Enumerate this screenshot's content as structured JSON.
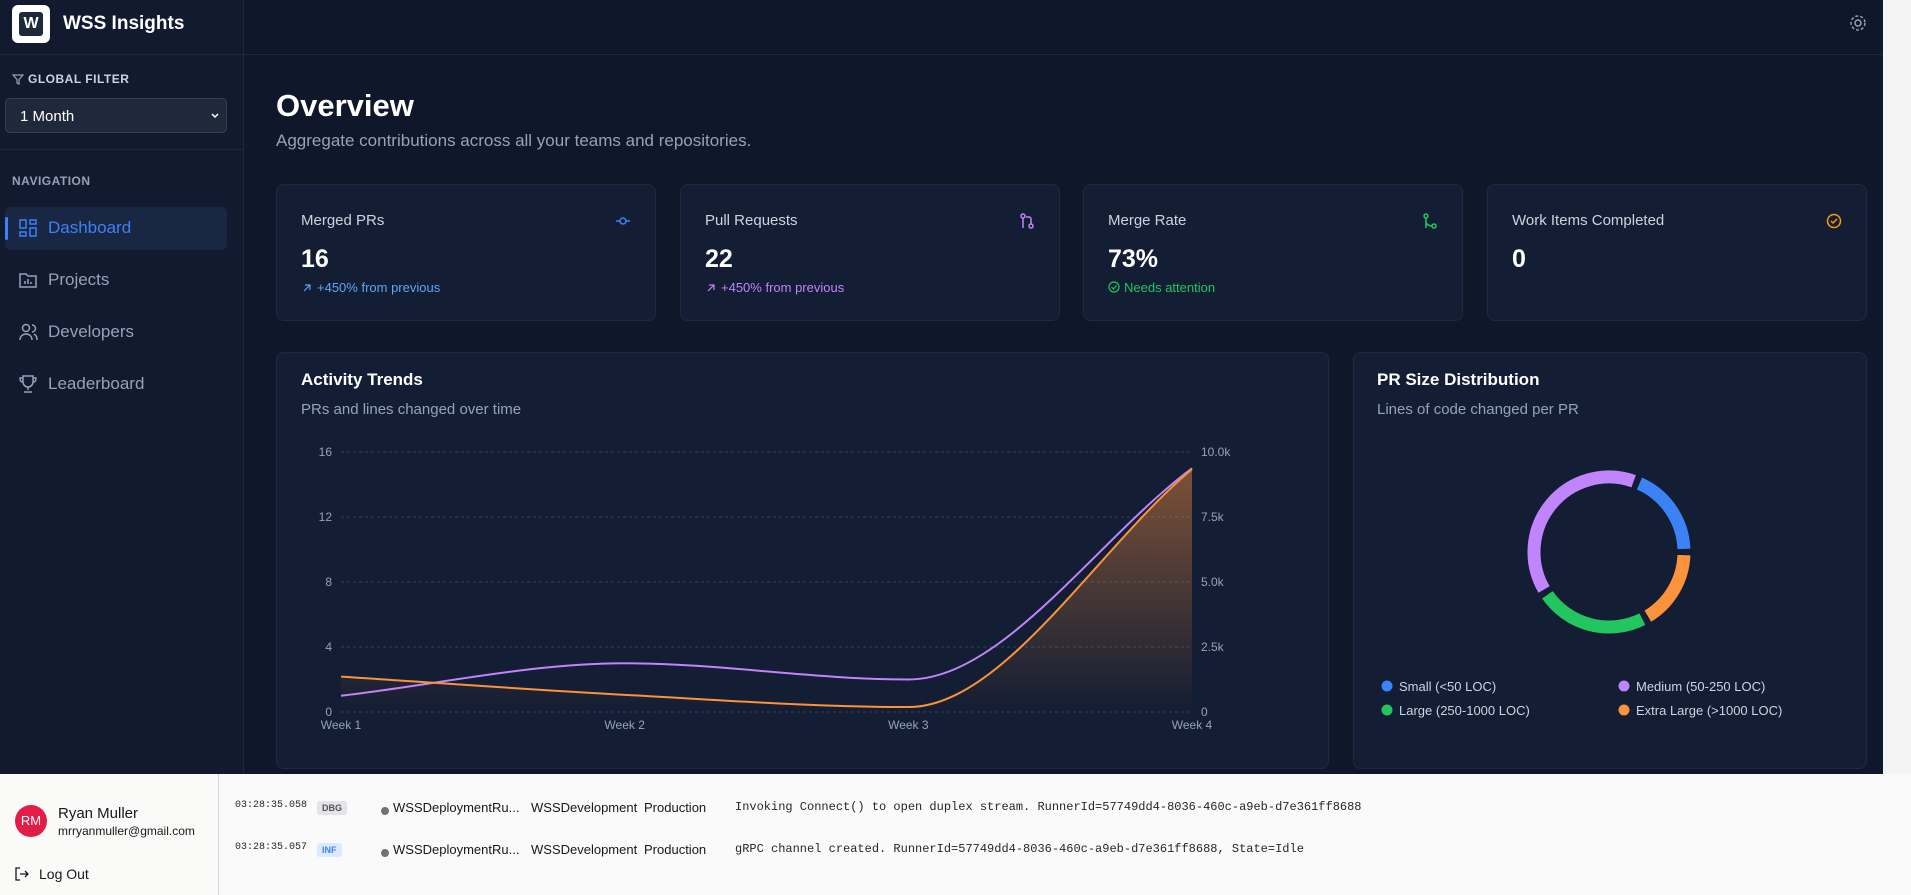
{
  "app": {
    "logo": "W",
    "name": "WSS Insights"
  },
  "sidebar": {
    "filter_label": "GLOBAL FILTER",
    "filter_value": "1 Month",
    "nav_label": "NAVIGATION",
    "nav": [
      "Dashboard",
      "Projects",
      "Developers",
      "Leaderboard"
    ]
  },
  "user": {
    "initials": "RM",
    "name": "Ryan Muller",
    "email": "mrryanmuller@gmail.com",
    "logout": "Log Out"
  },
  "page": {
    "title": "Overview",
    "subtitle": "Aggregate contributions across all your teams and repositories."
  },
  "cards": [
    {
      "title": "Merged PRs",
      "value": "16",
      "note": "+450% from previous"
    },
    {
      "title": "Pull Requests",
      "value": "22",
      "note": "+450% from previous"
    },
    {
      "title": "Merge Rate",
      "value": "73%",
      "note": "Needs attention"
    },
    {
      "title": "Work Items Completed",
      "value": "0"
    }
  ],
  "chart_data": [
    {
      "type": "line",
      "title": "Activity Trends",
      "subtitle": "PRs and lines changed over time",
      "categories": [
        "Week 1",
        "Week 2",
        "Week 3",
        "Week 4"
      ],
      "ylim": [
        0,
        16
      ],
      "yticks": [
        0,
        4,
        8,
        12,
        16
      ],
      "y2lim": [
        0,
        10000
      ],
      "y2ticks": [
        0,
        {
          "value": 2500,
          "label": "2.5k"
        },
        {
          "value": 5000,
          "label": "5.0k"
        },
        {
          "value": 7500,
          "label": "7.5k"
        },
        {
          "value": 10000,
          "label": "10.0k"
        }
      ],
      "grid": true,
      "series": [
        {
          "color": "#c084fc",
          "values": [
            1,
            3,
            2,
            15
          ]
        },
        {
          "color": "#fb923c",
          "axis": "y2",
          "values": [
            1360,
            660,
            190,
            9340
          ]
        }
      ]
    },
    {
      "type": "donut",
      "title": "PR Size Distribution",
      "subtitle": "Lines of code changed per PR",
      "categories": [
        "Small (<50 LOC)",
        "Medium (50-250 LOC)",
        "Large (250-1000 LOC)",
        "Extra Large (>1000 LOC)"
      ],
      "values": [
        19,
        40,
        24,
        17
      ],
      "colors": [
        "#3b82f6",
        "#c084fc",
        "#22c55e",
        "#fb923c"
      ]
    }
  ],
  "logs": {
    "rows": [
      [
        "03:28:35.058",
        "DBG",
        "WSSDeploymentRu...",
        "WSSDevelopment",
        "Production",
        "Invoking Connect() to open duplex stream. RunnerId=57749dd4-8036-460c-a9eb-d7e361ff8688"
      ],
      [
        "03:28:35.057",
        "INF",
        "WSSDeploymentRu...",
        "WSSDevelopment",
        "Production",
        "gRPC channel created. RunnerId=57749dd4-8036-460c-a9eb-d7e361ff8688, State=Idle"
      ]
    ]
  }
}
